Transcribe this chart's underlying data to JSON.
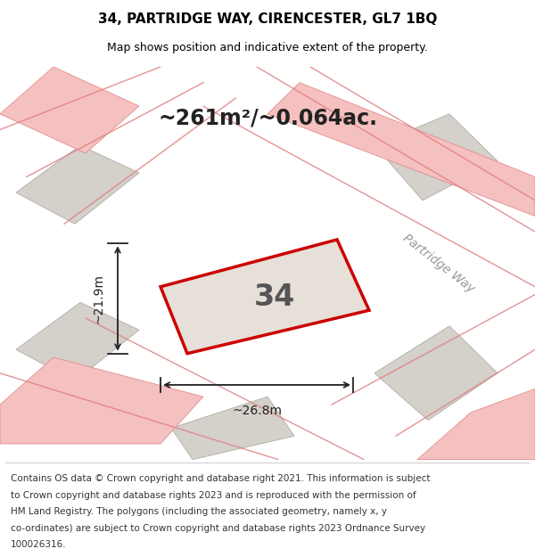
{
  "title": "34, PARTRIDGE WAY, CIRENCESTER, GL7 1BQ",
  "subtitle": "Map shows position and indicative extent of the property.",
  "footer_lines": [
    "Contains OS data © Crown copyright and database right 2021. This information is subject",
    "to Crown copyright and database rights 2023 and is reproduced with the permission of",
    "HM Land Registry. The polygons (including the associated geometry, namely x, y",
    "co-ordinates) are subject to Crown copyright and database rights 2023 Ordnance Survey",
    "100026316."
  ],
  "bg_color": "#eeece8",
  "highlight_edge": "#cc0000",
  "road_color": "#f5c0c0",
  "road_edge": "#e08080",
  "dim_color": "#222222",
  "label_34": "34",
  "area_label": "~261m²/~0.064ac.",
  "dim_width": "~26.8m",
  "dim_height": "~21.9m",
  "street_label": "Partridge Way",
  "title_fontsize": 11,
  "subtitle_fontsize": 9,
  "footer_fontsize": 7.5,
  "block_face": "#d4d0ca",
  "block_edge": "#b0aca6"
}
